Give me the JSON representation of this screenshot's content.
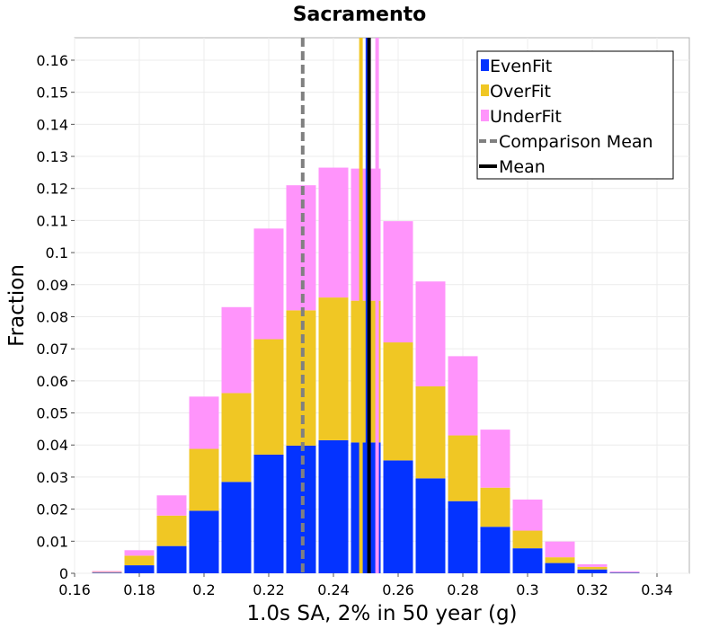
{
  "chart_data": {
    "type": "bar",
    "stacked": true,
    "title": "Sacramento",
    "xlabel": "1.0s SA, 2% in 50 year (g)",
    "ylabel": "Fraction",
    "xlim": [
      0.16,
      0.35
    ],
    "ylim": [
      0,
      0.167
    ],
    "grid": true,
    "legend_position": "top-right",
    "x_ticks": [
      "0.16",
      "0.18",
      "0.2",
      "0.22",
      "0.24",
      "0.26",
      "0.28",
      "0.3",
      "0.32",
      "0.34"
    ],
    "y_ticks": [
      "0",
      "0.01",
      "0.02",
      "0.03",
      "0.04",
      "0.05",
      "0.06",
      "0.07",
      "0.08",
      "0.09",
      "0.1",
      "0.11",
      "0.12",
      "0.13",
      "0.14",
      "0.15",
      "0.16"
    ],
    "bin_width": 0.01,
    "bin_centers": [
      0.17,
      0.18,
      0.19,
      0.2,
      0.21,
      0.22,
      0.23,
      0.24,
      0.25,
      0.26,
      0.27,
      0.28,
      0.29,
      0.3,
      0.31,
      0.32,
      0.33,
      0.34
    ],
    "series": [
      {
        "name": "EvenFit",
        "color": "#0433ff",
        "values": [
          0.0002,
          0.0025,
          0.0085,
          0.0195,
          0.0285,
          0.037,
          0.0398,
          0.0415,
          0.0408,
          0.0352,
          0.0296,
          0.0225,
          0.0145,
          0.0078,
          0.0032,
          0.0012,
          0.0002,
          0.0
        ]
      },
      {
        "name": "OverFit",
        "color": "#f0c724",
        "values": [
          0.0002,
          0.003,
          0.0095,
          0.0193,
          0.0277,
          0.036,
          0.0422,
          0.0445,
          0.0442,
          0.0368,
          0.0287,
          0.0205,
          0.0122,
          0.0055,
          0.0018,
          0.0008,
          0.0001,
          0.0
        ]
      },
      {
        "name": "UnderFit",
        "color": "#ff94fb",
        "values": [
          0.0003,
          0.0017,
          0.0063,
          0.0163,
          0.0268,
          0.0345,
          0.039,
          0.0405,
          0.0412,
          0.0378,
          0.0327,
          0.0247,
          0.0181,
          0.0097,
          0.0049,
          0.0008,
          0.0003,
          0.0
        ]
      }
    ],
    "mean_lines": [
      {
        "name": "Comparison Mean",
        "x": 0.2305,
        "color": "#808080",
        "style": "dashed"
      },
      {
        "name": "OverFit Mean",
        "x": 0.2485,
        "color": "#f0c724",
        "style": "solid"
      },
      {
        "name": "UnderFit Mean",
        "x": 0.2535,
        "color": "#ff94fb",
        "style": "solid"
      },
      {
        "name": "EvenFit Mean",
        "x": 0.2505,
        "color": "#0433ff",
        "style": "solid"
      },
      {
        "name": "Mean",
        "x": 0.251,
        "color": "#000000",
        "style": "solid"
      }
    ],
    "legend": [
      {
        "label": "EvenFit",
        "kind": "box",
        "color": "#0433ff"
      },
      {
        "label": "OverFit",
        "kind": "box",
        "color": "#f0c724"
      },
      {
        "label": "UnderFit",
        "kind": "box",
        "color": "#ff94fb"
      },
      {
        "label": "Comparison Mean",
        "kind": "dashed-line",
        "color": "#808080"
      },
      {
        "label": "Mean",
        "kind": "solid-line",
        "color": "#000000"
      }
    ]
  }
}
